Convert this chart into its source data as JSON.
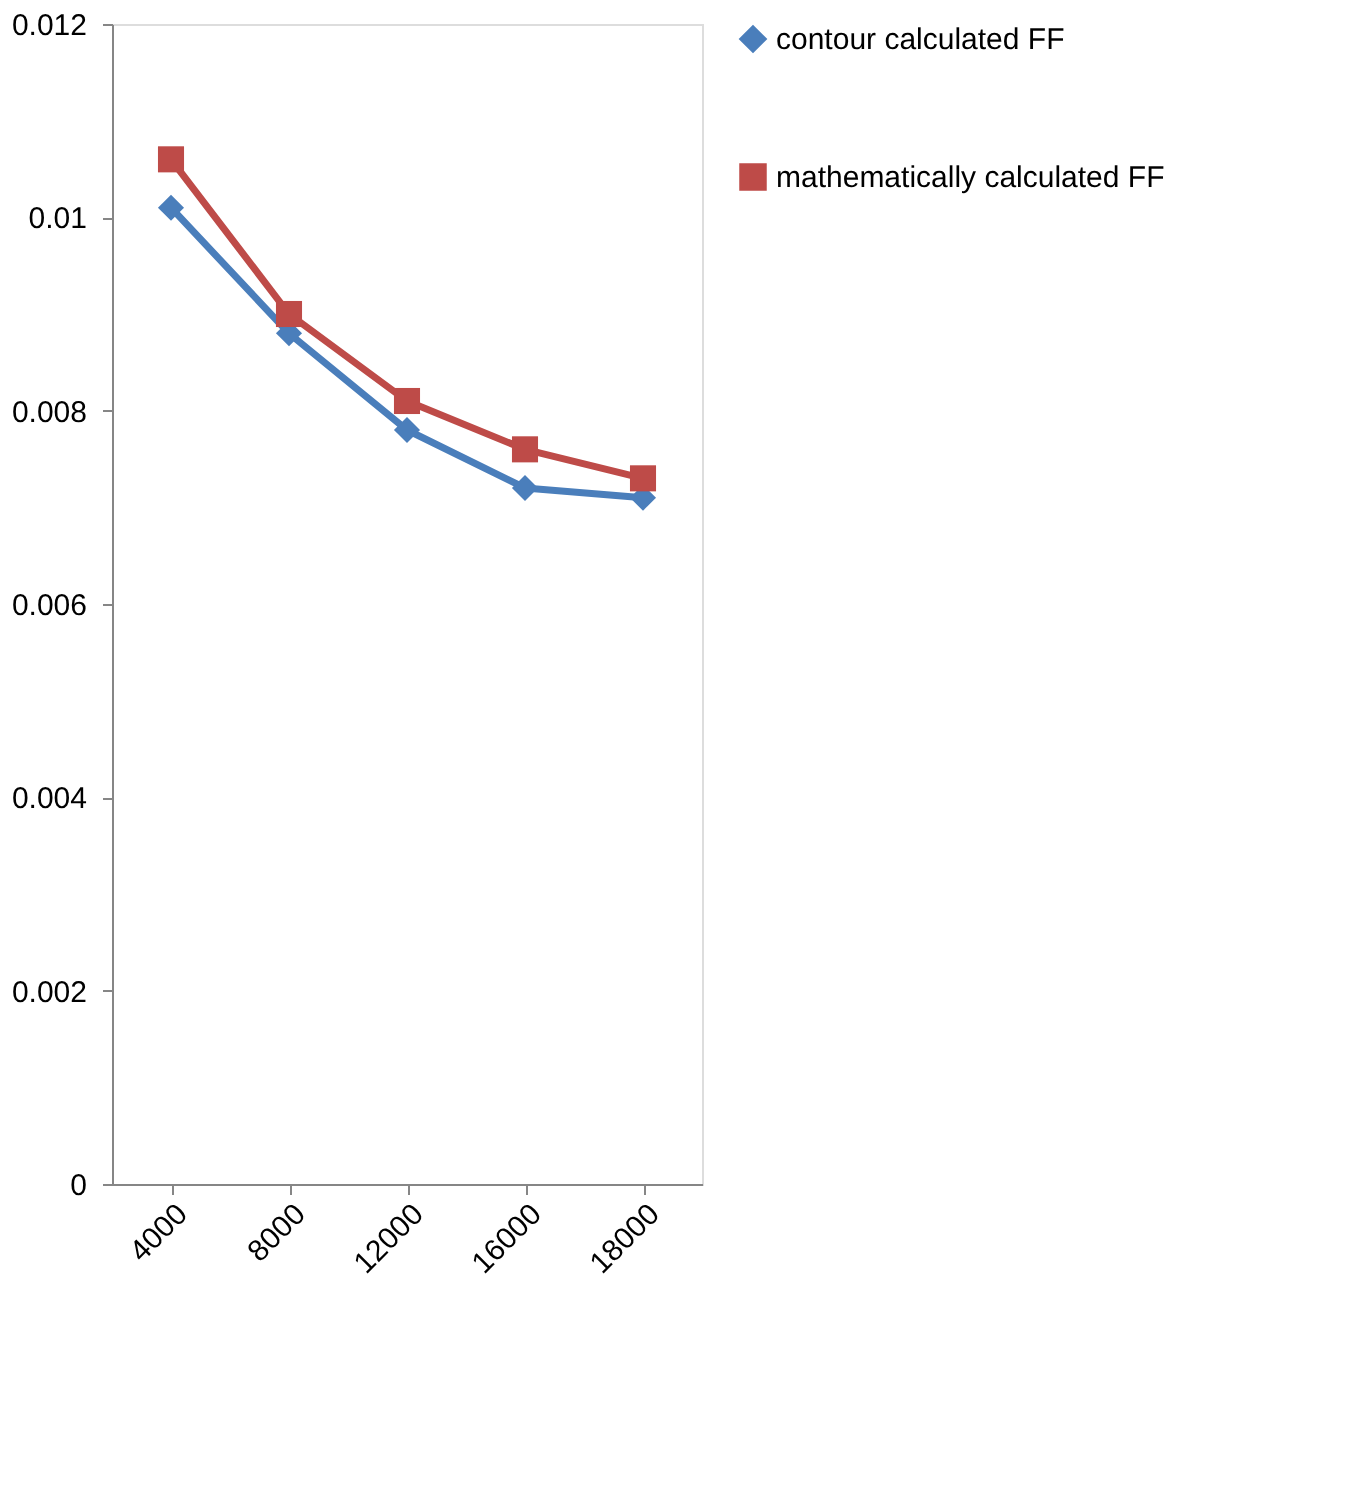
{
  "chart_data": {
    "type": "line",
    "categories": [
      "4000",
      "8000",
      "12000",
      "16000",
      "18000"
    ],
    "series": [
      {
        "name": "contour calculated  FF",
        "color": "#4a7ebb",
        "marker": "diamond",
        "values": [
          0.0101,
          0.0088,
          0.0078,
          0.0072,
          0.0071
        ]
      },
      {
        "name": "mathematically calculated FF",
        "color": "#be4b48",
        "marker": "square",
        "values": [
          0.0106,
          0.009,
          0.0081,
          0.0076,
          0.0073
        ]
      }
    ],
    "ylim": [
      0,
      0.012
    ],
    "yticks": [
      0,
      0.002,
      0.004,
      0.006,
      0.008,
      0.01,
      0.012
    ],
    "grid": false,
    "legend": "right",
    "line_style": "solid"
  }
}
